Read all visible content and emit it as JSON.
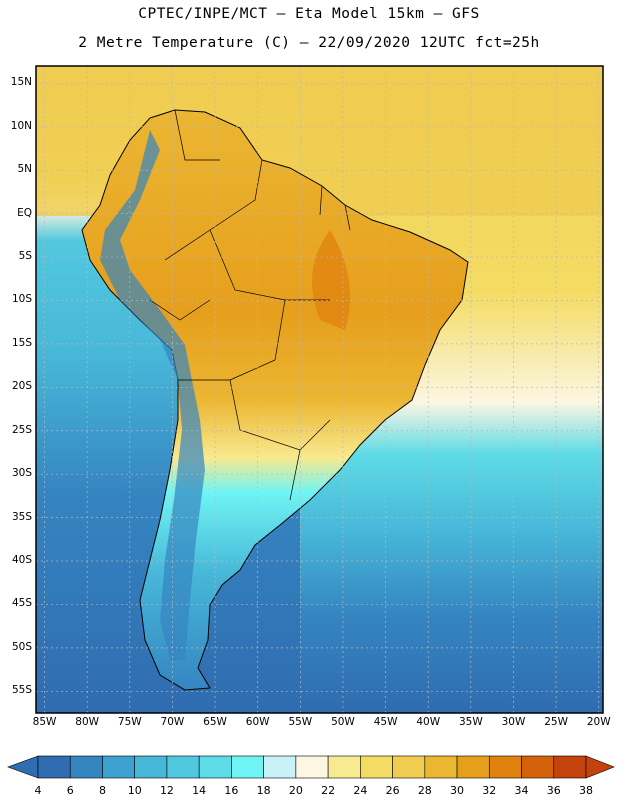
{
  "header": {
    "line1": "CPTEC/INPE/MCT –  Eta Model 15km – GFS",
    "line2": "2 Metre Temperature (C) – 22/09/2020 12UTC fct=25h"
  },
  "map": {
    "lat_labels": [
      "15N",
      "10N",
      "5N",
      "EQ",
      "5S",
      "10S",
      "15S",
      "20S",
      "25S",
      "30S",
      "35S",
      "40S",
      "45S",
      "50S",
      "55S"
    ],
    "lon_labels": [
      "85W",
      "80W",
      "75W",
      "70W",
      "65W",
      "60W",
      "55W",
      "50W",
      "45W",
      "40W",
      "35W",
      "30W",
      "25W",
      "20W"
    ],
    "lat_values": [
      15,
      10,
      5,
      0,
      -5,
      -10,
      -15,
      -20,
      -25,
      -30,
      -35,
      -40,
      -45,
      -50,
      -55
    ],
    "lon_values": [
      -85,
      -80,
      -75,
      -70,
      -65,
      -60,
      -55,
      -50,
      -45,
      -40,
      -35,
      -30,
      -25,
      -20
    ],
    "extent": {
      "lon_min": -86,
      "lon_max": -19.5,
      "lat_min": -57.5,
      "lat_max": 17
    }
  },
  "colorbar": {
    "labels": [
      "4",
      "6",
      "8",
      "10",
      "12",
      "14",
      "16",
      "18",
      "20",
      "22",
      "24",
      "26",
      "28",
      "30",
      "32",
      "34",
      "36",
      "38"
    ],
    "low_color": "#2e6db0",
    "high_color": "#c4420c",
    "colors": [
      "#2f6cb0",
      "#3585c1",
      "#3da2cf",
      "#47b7d8",
      "#52c8df",
      "#5ddbe6",
      "#6ef4f4",
      "#c8f2f8",
      "#fcf6e2",
      "#f8ea90",
      "#f4dc64",
      "#f0cd50",
      "#ebb632",
      "#e69f1c",
      "#e0820f",
      "#d4620a",
      "#c4420c"
    ]
  }
}
